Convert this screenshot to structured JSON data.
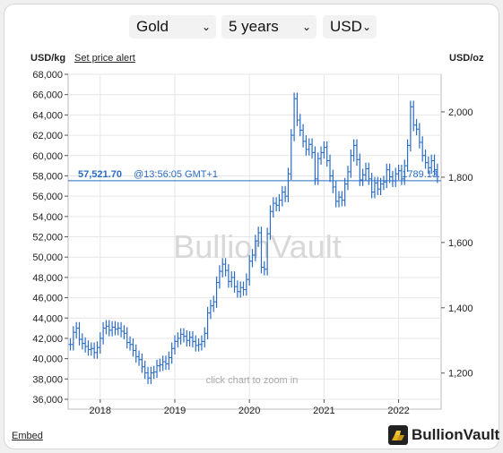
{
  "controls": {
    "metal": "Gold",
    "period": "5 years",
    "currency": "USD"
  },
  "header": {
    "left_unit": "USD/kg",
    "alert_link": "Set price alert",
    "right_unit": "USD/oz"
  },
  "footer": {
    "embed_link": "Embed",
    "brand": "BullionVault"
  },
  "chart_data": {
    "type": "line",
    "style": "ohlc-bars",
    "watermark": "BullionVault",
    "hint": "click chart to zoom in",
    "grid": true,
    "x_labels": [
      "2018",
      "2019",
      "2020",
      "2021",
      "2022"
    ],
    "x_label_dates": [
      2018.0,
      2019.0,
      2020.0,
      2021.0,
      2022.0
    ],
    "xlim": [
      2017.57,
      2022.57
    ],
    "left_axis": {
      "unit": "USD/kg",
      "ylim": [
        36000,
        68000
      ],
      "ticks": [
        "36,000",
        "38,000",
        "40,000",
        "42,000",
        "44,000",
        "46,000",
        "48,000",
        "50,000",
        "52,000",
        "54,000",
        "56,000",
        "58,000",
        "60,000",
        "62,000",
        "64,000",
        "66,000",
        "68,000"
      ],
      "tick_values": [
        36000,
        38000,
        40000,
        42000,
        44000,
        46000,
        48000,
        50000,
        52000,
        54000,
        56000,
        58000,
        60000,
        62000,
        64000,
        66000,
        68000
      ]
    },
    "right_axis": {
      "unit": "USD/oz",
      "ticks": [
        "1,200",
        "1,400",
        "1,600",
        "1,800",
        "2,000"
      ],
      "tick_values": [
        1200,
        1400,
        1600,
        1800,
        2000
      ]
    },
    "current_price": {
      "value_kg": 57521.7,
      "label": "57,521.70",
      "time": "@13:56:05 GMT+1",
      "value_oz_label": "1789.13"
    },
    "color": "#2b6cc4",
    "series": [
      {
        "t": 2017.6,
        "v": 41400
      },
      {
        "t": 2017.64,
        "v": 42600
      },
      {
        "t": 2017.68,
        "v": 43000
      },
      {
        "t": 2017.72,
        "v": 41900
      },
      {
        "t": 2017.76,
        "v": 41500
      },
      {
        "t": 2017.8,
        "v": 41200
      },
      {
        "t": 2017.84,
        "v": 40900
      },
      {
        "t": 2017.88,
        "v": 41000
      },
      {
        "t": 2017.92,
        "v": 40600
      },
      {
        "t": 2017.96,
        "v": 41100
      },
      {
        "t": 2018.0,
        "v": 42000
      },
      {
        "t": 2018.04,
        "v": 43000
      },
      {
        "t": 2018.08,
        "v": 43200
      },
      {
        "t": 2018.12,
        "v": 42800
      },
      {
        "t": 2018.16,
        "v": 43100
      },
      {
        "t": 2018.2,
        "v": 42900
      },
      {
        "t": 2018.24,
        "v": 43000
      },
      {
        "t": 2018.28,
        "v": 42700
      },
      {
        "t": 2018.32,
        "v": 42500
      },
      {
        "t": 2018.36,
        "v": 41600
      },
      {
        "t": 2018.4,
        "v": 41400
      },
      {
        "t": 2018.44,
        "v": 40800
      },
      {
        "t": 2018.48,
        "v": 40200
      },
      {
        "t": 2018.52,
        "v": 39900
      },
      {
        "t": 2018.56,
        "v": 39200
      },
      {
        "t": 2018.6,
        "v": 38600
      },
      {
        "t": 2018.64,
        "v": 38100
      },
      {
        "t": 2018.68,
        "v": 38600
      },
      {
        "t": 2018.72,
        "v": 38700
      },
      {
        "t": 2018.76,
        "v": 39300
      },
      {
        "t": 2018.8,
        "v": 39400
      },
      {
        "t": 2018.84,
        "v": 39700
      },
      {
        "t": 2018.88,
        "v": 39500
      },
      {
        "t": 2018.92,
        "v": 40100
      },
      {
        "t": 2018.96,
        "v": 41000
      },
      {
        "t": 2019.0,
        "v": 41700
      },
      {
        "t": 2019.04,
        "v": 42000
      },
      {
        "t": 2019.08,
        "v": 42400
      },
      {
        "t": 2019.12,
        "v": 42200
      },
      {
        "t": 2019.16,
        "v": 41800
      },
      {
        "t": 2019.2,
        "v": 42100
      },
      {
        "t": 2019.24,
        "v": 41700
      },
      {
        "t": 2019.28,
        "v": 41300
      },
      {
        "t": 2019.32,
        "v": 41400
      },
      {
        "t": 2019.36,
        "v": 41700
      },
      {
        "t": 2019.4,
        "v": 42500
      },
      {
        "t": 2019.44,
        "v": 44500
      },
      {
        "t": 2019.48,
        "v": 45200
      },
      {
        "t": 2019.52,
        "v": 45600
      },
      {
        "t": 2019.56,
        "v": 47500
      },
      {
        "t": 2019.6,
        "v": 48600
      },
      {
        "t": 2019.64,
        "v": 49300
      },
      {
        "t": 2019.68,
        "v": 48700
      },
      {
        "t": 2019.72,
        "v": 47600
      },
      {
        "t": 2019.76,
        "v": 48000
      },
      {
        "t": 2019.8,
        "v": 47100
      },
      {
        "t": 2019.84,
        "v": 46600
      },
      {
        "t": 2019.88,
        "v": 47000
      },
      {
        "t": 2019.92,
        "v": 46800
      },
      {
        "t": 2019.96,
        "v": 47800
      },
      {
        "t": 2020.0,
        "v": 49600
      },
      {
        "t": 2020.04,
        "v": 50200
      },
      {
        "t": 2020.08,
        "v": 51600
      },
      {
        "t": 2020.12,
        "v": 52400
      },
      {
        "t": 2020.16,
        "v": 49000
      },
      {
        "t": 2020.2,
        "v": 48800
      },
      {
        "t": 2020.24,
        "v": 52300
      },
      {
        "t": 2020.28,
        "v": 54500
      },
      {
        "t": 2020.32,
        "v": 55300
      },
      {
        "t": 2020.36,
        "v": 55100
      },
      {
        "t": 2020.4,
        "v": 55600
      },
      {
        "t": 2020.44,
        "v": 56400
      },
      {
        "t": 2020.48,
        "v": 56000
      },
      {
        "t": 2020.52,
        "v": 58200
      },
      {
        "t": 2020.56,
        "v": 62000
      },
      {
        "t": 2020.6,
        "v": 65600
      },
      {
        "t": 2020.64,
        "v": 63500
      },
      {
        "t": 2020.68,
        "v": 62500
      },
      {
        "t": 2020.72,
        "v": 61400
      },
      {
        "t": 2020.76,
        "v": 60600
      },
      {
        "t": 2020.8,
        "v": 61100
      },
      {
        "t": 2020.84,
        "v": 60300
      },
      {
        "t": 2020.88,
        "v": 57700
      },
      {
        "t": 2020.92,
        "v": 59700
      },
      {
        "t": 2020.96,
        "v": 60300
      },
      {
        "t": 2021.0,
        "v": 60800
      },
      {
        "t": 2021.04,
        "v": 59500
      },
      {
        "t": 2021.08,
        "v": 58000
      },
      {
        "t": 2021.12,
        "v": 56900
      },
      {
        "t": 2021.16,
        "v": 55500
      },
      {
        "t": 2021.2,
        "v": 55900
      },
      {
        "t": 2021.24,
        "v": 55600
      },
      {
        "t": 2021.28,
        "v": 57200
      },
      {
        "t": 2021.32,
        "v": 58400
      },
      {
        "t": 2021.36,
        "v": 60000
      },
      {
        "t": 2021.4,
        "v": 61000
      },
      {
        "t": 2021.44,
        "v": 59600
      },
      {
        "t": 2021.48,
        "v": 57600
      },
      {
        "t": 2021.52,
        "v": 58100
      },
      {
        "t": 2021.56,
        "v": 58700
      },
      {
        "t": 2021.6,
        "v": 57700
      },
      {
        "t": 2021.64,
        "v": 56400
      },
      {
        "t": 2021.68,
        "v": 57300
      },
      {
        "t": 2021.72,
        "v": 56700
      },
      {
        "t": 2021.76,
        "v": 57200
      },
      {
        "t": 2021.8,
        "v": 57400
      },
      {
        "t": 2021.84,
        "v": 58600
      },
      {
        "t": 2021.88,
        "v": 57900
      },
      {
        "t": 2021.92,
        "v": 57500
      },
      {
        "t": 2021.96,
        "v": 58200
      },
      {
        "t": 2022.0,
        "v": 58500
      },
      {
        "t": 2022.04,
        "v": 57700
      },
      {
        "t": 2022.08,
        "v": 59000
      },
      {
        "t": 2022.12,
        "v": 61000
      },
      {
        "t": 2022.16,
        "v": 64800
      },
      {
        "t": 2022.2,
        "v": 63000
      },
      {
        "t": 2022.24,
        "v": 62600
      },
      {
        "t": 2022.28,
        "v": 61300
      },
      {
        "t": 2022.32,
        "v": 60000
      },
      {
        "t": 2022.36,
        "v": 59300
      },
      {
        "t": 2022.4,
        "v": 58800
      },
      {
        "t": 2022.44,
        "v": 59500
      },
      {
        "t": 2022.48,
        "v": 58600
      },
      {
        "t": 2022.52,
        "v": 57900
      }
    ]
  }
}
